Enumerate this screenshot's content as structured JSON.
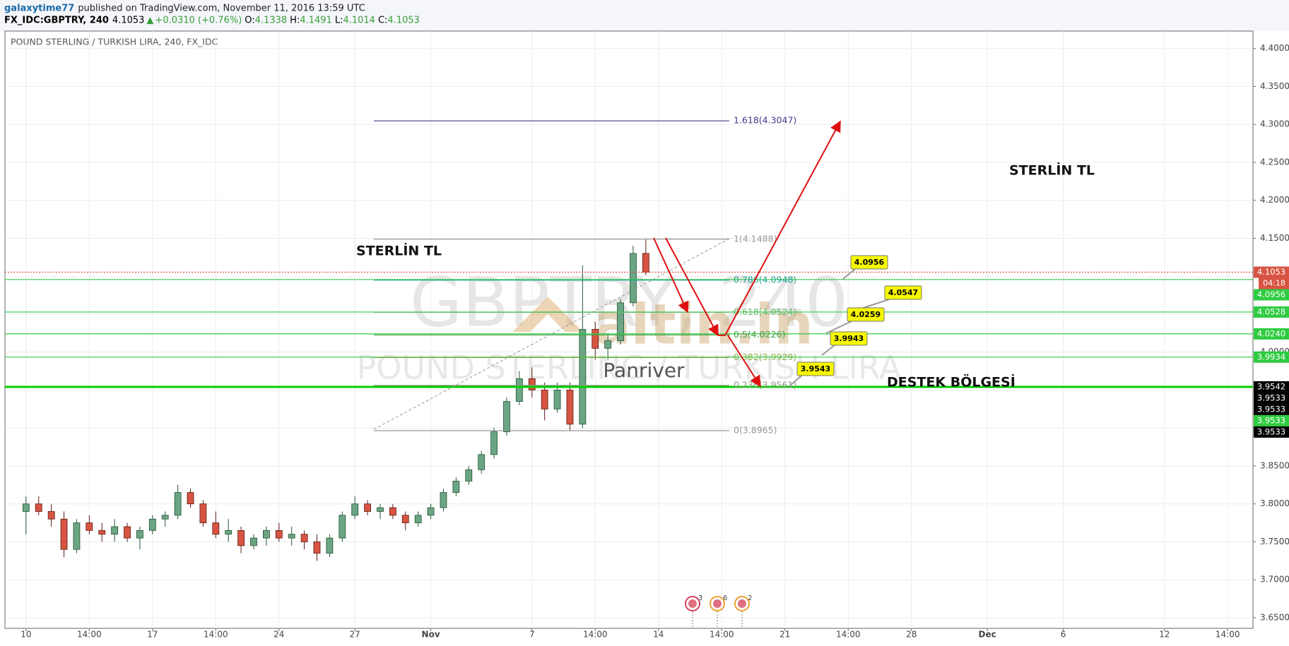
{
  "header": {
    "user": "galaxytime77",
    "text": "published on TradingView.com, November 11, 2016 13:59 UTC"
  },
  "symbol_bar": {
    "symbol": "FX_IDC:GBPTRY, 240",
    "last": "4.1053",
    "arrow": "▲",
    "change": "+0.0310 (+0.76%)",
    "ohlc": [
      {
        "key": "O:",
        "value": "4.1338"
      },
      {
        "key": "H:",
        "value": "4.1491"
      },
      {
        "key": "L:",
        "value": "4.1014"
      },
      {
        "key": "C:",
        "value": "4.1053"
      }
    ]
  },
  "chart_data": {
    "type": "candlestick",
    "title": "POUND STERLING / TURKISH LIRA, 240, FX_IDC",
    "watermark": [
      "GBPTRY, 240",
      "POUND STERLING / TURKISH LIRA"
    ],
    "logo": "altin.in",
    "logo_sub": "Panriver",
    "up_color": "#6ba583",
    "down_color": "#d75442",
    "grid": true,
    "x": [
      0,
      3,
      6,
      9,
      12,
      15,
      18,
      21,
      24,
      27,
      30,
      33,
      36,
      39,
      42,
      45,
      48,
      51,
      54,
      57,
      60,
      63,
      66,
      69,
      72,
      75,
      78,
      81,
      84,
      87,
      90,
      93,
      96,
      99,
      102,
      105,
      108,
      111,
      114,
      117,
      120,
      123,
      126,
      129,
      132,
      135,
      138,
      141,
      144,
      147
    ],
    "open": [
      3.79,
      3.8,
      3.79,
      3.78,
      3.74,
      3.775,
      3.765,
      3.76,
      3.77,
      3.755,
      3.765,
      3.78,
      3.785,
      3.815,
      3.8,
      3.775,
      3.76,
      3.765,
      3.745,
      3.755,
      3.765,
      3.755,
      3.76,
      3.75,
      3.735,
      3.755,
      3.785,
      3.8,
      3.79,
      3.795,
      3.785,
      3.775,
      3.785,
      3.795,
      3.815,
      3.83,
      3.845,
      3.865,
      3.895,
      3.935,
      3.965,
      3.95,
      3.925,
      3.95,
      3.905,
      4.03,
      4.005,
      4.015,
      4.065,
      4.13
    ],
    "high": [
      3.81,
      3.81,
      3.8,
      3.79,
      3.78,
      3.785,
      3.775,
      3.78,
      3.775,
      3.77,
      3.785,
      3.79,
      3.825,
      3.82,
      3.805,
      3.79,
      3.78,
      3.77,
      3.76,
      3.77,
      3.775,
      3.77,
      3.765,
      3.76,
      3.76,
      3.79,
      3.81,
      3.805,
      3.8,
      3.8,
      3.79,
      3.79,
      3.8,
      3.82,
      3.835,
      3.85,
      3.87,
      3.9,
      3.94,
      3.975,
      3.98,
      3.96,
      3.96,
      3.96,
      4.114,
      4.04,
      4.025,
      4.07,
      4.14,
      4.1491
    ],
    "low": [
      3.76,
      3.785,
      3.77,
      3.73,
      3.735,
      3.76,
      3.75,
      3.75,
      3.75,
      3.74,
      3.76,
      3.77,
      3.78,
      3.795,
      3.77,
      3.755,
      3.75,
      3.735,
      3.74,
      3.745,
      3.75,
      3.745,
      3.74,
      3.725,
      3.73,
      3.75,
      3.78,
      3.785,
      3.78,
      3.78,
      3.765,
      3.77,
      3.78,
      3.79,
      3.81,
      3.825,
      3.84,
      3.86,
      3.89,
      3.93,
      3.94,
      3.91,
      3.92,
      3.8965,
      3.9,
      3.99,
      3.99,
      4.01,
      4.06,
      4.1014
    ],
    "close": [
      3.8,
      3.79,
      3.78,
      3.74,
      3.775,
      3.765,
      3.76,
      3.77,
      3.755,
      3.765,
      3.78,
      3.785,
      3.815,
      3.8,
      3.775,
      3.76,
      3.765,
      3.745,
      3.755,
      3.765,
      3.755,
      3.76,
      3.75,
      3.735,
      3.755,
      3.785,
      3.8,
      3.79,
      3.795,
      3.785,
      3.775,
      3.785,
      3.795,
      3.815,
      3.83,
      3.845,
      3.865,
      3.895,
      3.935,
      3.965,
      3.95,
      3.925,
      3.95,
      3.905,
      4.03,
      4.005,
      4.015,
      4.065,
      4.13,
      4.1053
    ],
    "xlim": [
      -5,
      291
    ],
    "xticks": [
      {
        "value": 0,
        "label": "10"
      },
      {
        "value": 15,
        "label": "14:00"
      },
      {
        "value": 30,
        "label": "17"
      },
      {
        "value": 45,
        "label": "14:00"
      },
      {
        "value": 60,
        "label": "24"
      },
      {
        "value": 78,
        "label": "27"
      },
      {
        "value": 96,
        "label": "Nov"
      },
      {
        "value": 120,
        "label": "7"
      },
      {
        "value": 135,
        "label": "14:00"
      },
      {
        "value": 150,
        "label": "14"
      },
      {
        "value": 165,
        "label": "14:00"
      },
      {
        "value": 180,
        "label": "21"
      },
      {
        "value": 195,
        "label": "14:00"
      },
      {
        "value": 210,
        "label": "28"
      },
      {
        "value": 228,
        "label": "Dec"
      },
      {
        "value": 246,
        "label": "6"
      },
      {
        "value": 270,
        "label": "12"
      },
      {
        "value": 285,
        "label": "14:00"
      }
    ],
    "ylim": [
      3.636,
      4.423
    ],
    "yticks": [
      {
        "value": 3.65,
        "label": "3.6500"
      },
      {
        "value": 3.7,
        "label": "3.7000"
      },
      {
        "value": 3.75,
        "label": "3.7500"
      },
      {
        "value": 3.8,
        "label": "3.8000"
      },
      {
        "value": 3.85,
        "label": "3.8500"
      },
      {
        "value": 3.9,
        "label": "3.9000"
      },
      {
        "value": 3.95,
        "label": "3.9500"
      },
      {
        "value": 4.0,
        "label": "4.0000"
      },
      {
        "value": 4.05,
        "label": "4.0500"
      },
      {
        "value": 4.1,
        "label": "4.1000"
      },
      {
        "value": 4.15,
        "label": "4.1500"
      },
      {
        "value": 4.2,
        "label": "4.2000"
      },
      {
        "value": 4.25,
        "label": "4.2500"
      },
      {
        "value": 4.3,
        "label": "4.3000"
      },
      {
        "value": 4.35,
        "label": "4.3500"
      },
      {
        "value": 4.4,
        "label": "4.4000"
      }
    ],
    "lines": [
      {
        "value": 4.1053,
        "color": "#d75442",
        "style": "dotted"
      },
      {
        "value": 4.0956,
        "color": "#2ecc40"
      },
      {
        "value": 4.0528,
        "color": "#2ecc40"
      },
      {
        "value": 4.024,
        "color": "#2ecc40"
      },
      {
        "value": 3.9934,
        "color": "#2ecc40"
      },
      {
        "value": 3.9542,
        "color": "#00d000",
        "style": "bold"
      }
    ],
    "fib": [
      {
        "value": 4.3047,
        "label": "1.618(4.3047)",
        "color": "#3a3a8c"
      },
      {
        "value": 4.1488,
        "label": "1(4.1488)",
        "color": "#999999"
      },
      {
        "value": 4.0948,
        "label": "0.786(4.0948)",
        "color": "#26a69a"
      },
      {
        "value": 4.0524,
        "label": "0.618(4.0524)",
        "color": "#66bb6a"
      },
      {
        "value": 4.0226,
        "label": "0.5(4.0226)",
        "color": "#43a047"
      },
      {
        "value": 3.9929,
        "label": "0.382(3.9929)",
        "color": "#7cb342"
      },
      {
        "value": 3.9561,
        "label": "0.236(3.9561)",
        "color": "#8d9a88"
      },
      {
        "value": 3.8965,
        "label": "0(3.8965)",
        "color": "#999999"
      }
    ],
    "price_tags": [
      {
        "value": 4.1053,
        "label": "4.1053",
        "color": "#d75442",
        "sub": "04:18"
      },
      {
        "value": 4.0956,
        "label": "4.0956",
        "color": "#2ecc40"
      },
      {
        "value": 4.0528,
        "label": "4.0528",
        "color": "#2ecc40"
      },
      {
        "value": 4.024,
        "label": "4.0240",
        "color": "#2ecc40"
      },
      {
        "value": 3.9934,
        "label": "3.9934",
        "color": "#2ecc40"
      },
      {
        "value": 3.9542,
        "label": "3.9542",
        "color": "#000000"
      },
      {
        "value": 3.9533,
        "label": "3.9533",
        "color": "#000000"
      },
      {
        "value": 3.9533,
        "label": "3.9533",
        "color": "#000000"
      },
      {
        "value": 3.9533,
        "label": "3.9533",
        "color": "#2ecc40"
      },
      {
        "value": 3.9533,
        "label": "3.9533",
        "color": "#000000"
      }
    ],
    "callouts": [
      "4.0956",
      "4.0547",
      "4.0259",
      "3.9943",
      "3.9543"
    ],
    "annotations": [
      "STERLİN TL",
      "STERLİN TL",
      "DESTEK BÖLGESİ"
    ],
    "events": [
      "3",
      "6",
      "2"
    ]
  }
}
